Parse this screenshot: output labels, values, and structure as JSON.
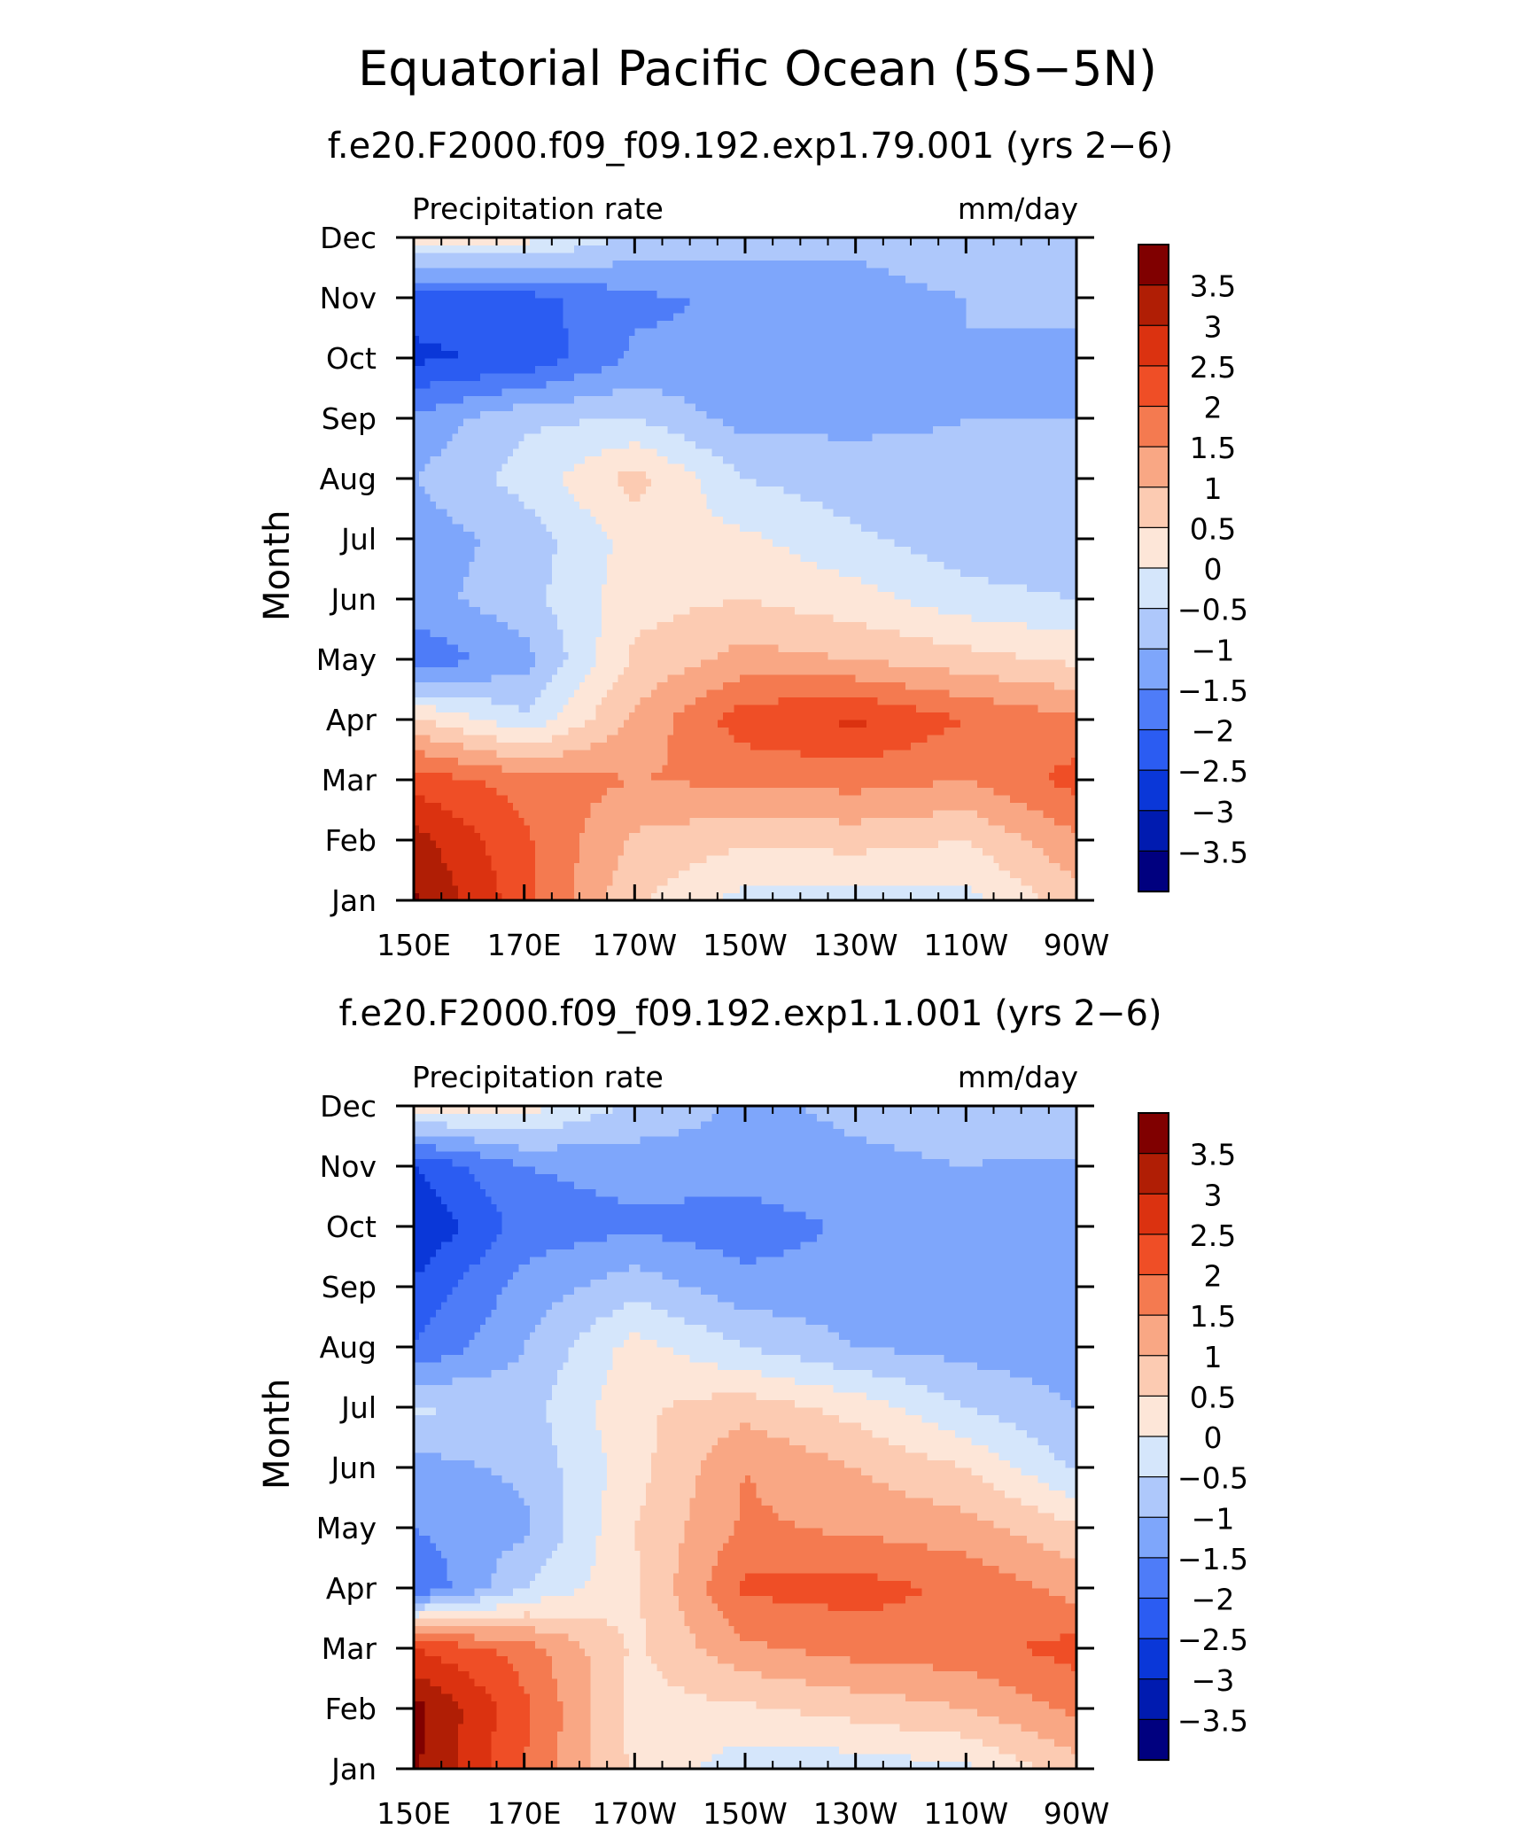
{
  "figure": {
    "title": "Equatorial Pacific Ocean (5S−5N)"
  },
  "chart_data": [
    {
      "type": "heatmap",
      "title": "f.e20.F2000.f09_f09.192.exp1.79.001 (yrs 2−6)",
      "left_string": "Precipitation rate",
      "right_string": "mm/day",
      "ylabel": "Month",
      "xlabel": "",
      "x_ticks": [
        "150E",
        "170E",
        "170W",
        "150W",
        "130W",
        "110W",
        "90W"
      ],
      "x_tick_lon": [
        150,
        170,
        190,
        210,
        230,
        250,
        270
      ],
      "xlim": [
        150,
        270
      ],
      "y_ticks": [
        "Jan",
        "Feb",
        "Mar",
        "Apr",
        "May",
        "Jun",
        "Jul",
        "Aug",
        "Sep",
        "Oct",
        "Nov",
        "Dec"
      ],
      "ylim": [
        1,
        12
      ],
      "grid_lon": [
        150,
        170,
        190,
        210,
        230,
        250,
        270
      ],
      "values": [
        [
          3.6,
          2.2,
          0.6,
          -0.2,
          -0.3,
          -0.2,
          0.8
        ],
        [
          3.2,
          2.1,
          0.9,
          0.6,
          0.7,
          0.5,
          1.4
        ],
        [
          2.3,
          1.8,
          1.5,
          1.6,
          1.7,
          1.5,
          2.2
        ],
        [
          0.6,
          -0.4,
          1.1,
          2.3,
          2.6,
          2.0,
          1.6
        ],
        [
          -1.9,
          -1.2,
          0.6,
          1.2,
          1.0,
          0.7,
          0.4
        ],
        [
          -1.2,
          -0.7,
          0.3,
          0.5,
          0.2,
          -0.3,
          -0.5
        ],
        [
          -1.3,
          -0.8,
          0.2,
          0.1,
          -0.4,
          -0.8,
          -1.0
        ],
        [
          -1.0,
          -0.3,
          0.7,
          -0.5,
          -0.8,
          -0.9,
          -1.0
        ],
        [
          -1.4,
          -0.6,
          -0.5,
          -1.2,
          -1.1,
          -1.0,
          -1.0
        ],
        [
          -2.6,
          -2.4,
          -1.4,
          -1.5,
          -1.3,
          -1.0,
          -1.1
        ],
        [
          -2.3,
          -2.2,
          -1.6,
          -1.4,
          -1.2,
          -1.0,
          -0.9
        ],
        [
          0.3,
          0.2,
          -0.6,
          -0.8,
          -0.9,
          -0.6,
          -0.5
        ]
      ],
      "contour_levels": [
        -3.5,
        -3,
        -2.5,
        -2,
        -1.5,
        -1,
        -0.5,
        0,
        0.5,
        1,
        1.5,
        2,
        2.5,
        3,
        3.5
      ],
      "colorbar_labels": [
        "3.5",
        "3",
        "2.5",
        "2",
        "1.5",
        "1",
        "0.5",
        "0",
        "−0.5",
        "−1",
        "−1.5",
        "−2",
        "−2.5",
        "−3",
        "−3.5"
      ],
      "colors": [
        "#00007f",
        "#001bb0",
        "#0a37d8",
        "#2b5cf2",
        "#4e7cf8",
        "#7ea6fb",
        "#aec8fb",
        "#d5e6fb",
        "#fde6d8",
        "#fccbb2",
        "#f9a784",
        "#f47a50",
        "#ef4e26",
        "#db3210",
        "#b01e05",
        "#800000"
      ]
    },
    {
      "type": "heatmap",
      "title": "f.e20.F2000.f09_f09.192.exp1.1.001 (yrs 2−6)",
      "left_string": "Precipitation rate",
      "right_string": "mm/day",
      "ylabel": "Month",
      "xlabel": "",
      "x_ticks": [
        "150E",
        "170E",
        "170W",
        "150W",
        "130W",
        "110W",
        "90W"
      ],
      "x_tick_lon": [
        150,
        170,
        190,
        210,
        230,
        250,
        270
      ],
      "xlim": [
        150,
        270
      ],
      "y_ticks": [
        "Jan",
        "Feb",
        "Mar",
        "Apr",
        "May",
        "Jun",
        "Jul",
        "Aug",
        "Sep",
        "Oct",
        "Nov",
        "Dec"
      ],
      "ylim": [
        1,
        12
      ],
      "grid_lon": [
        150,
        170,
        190,
        210,
        230,
        250,
        270
      ],
      "values": [
        [
          3.6,
          2.0,
          0.4,
          -0.3,
          -0.3,
          -0.1,
          0.8
        ],
        [
          3.7,
          2.1,
          0.3,
          0.4,
          0.7,
          1.0,
          1.6
        ],
        [
          2.5,
          1.8,
          0.4,
          1.4,
          1.7,
          1.8,
          2.2
        ],
        [
          -2.0,
          -0.5,
          0.4,
          2.1,
          2.2,
          1.9,
          1.3
        ],
        [
          -1.5,
          -1.1,
          0.5,
          1.6,
          1.4,
          1.2,
          0.6
        ],
        [
          -1.2,
          -0.9,
          0.3,
          1.5,
          1.0,
          0.5,
          -0.6
        ],
        [
          -0.4,
          -0.7,
          0.4,
          0.8,
          0.3,
          -0.5,
          -1.0
        ],
        [
          -2.0,
          -1.0,
          0.2,
          -0.5,
          -1.0,
          -1.2,
          -1.3
        ],
        [
          -2.4,
          -1.3,
          -0.7,
          -1.3,
          -1.3,
          -1.5,
          -1.4
        ],
        [
          -3.0,
          -1.8,
          -1.6,
          -1.8,
          -1.4,
          -1.3,
          -1.2
        ],
        [
          -2.5,
          -1.5,
          -1.3,
          -1.2,
          -1.1,
          -1.0,
          -1.1
        ],
        [
          0.3,
          0.2,
          -0.6,
          -1.1,
          -0.9,
          -0.8,
          -0.5
        ]
      ],
      "contour_levels": [
        -3.5,
        -3,
        -2.5,
        -2,
        -1.5,
        -1,
        -0.5,
        0,
        0.5,
        1,
        1.5,
        2,
        2.5,
        3,
        3.5
      ],
      "colorbar_labels": [
        "3.5",
        "3",
        "2.5",
        "2",
        "1.5",
        "1",
        "0.5",
        "0",
        "−0.5",
        "−1",
        "−1.5",
        "−2",
        "−2.5",
        "−3",
        "−3.5"
      ],
      "colors": [
        "#00007f",
        "#001bb0",
        "#0a37d8",
        "#2b5cf2",
        "#4e7cf8",
        "#7ea6fb",
        "#aec8fb",
        "#d5e6fb",
        "#fde6d8",
        "#fccbb2",
        "#f9a784",
        "#f47a50",
        "#ef4e26",
        "#db3210",
        "#b01e05",
        "#800000"
      ]
    }
  ]
}
